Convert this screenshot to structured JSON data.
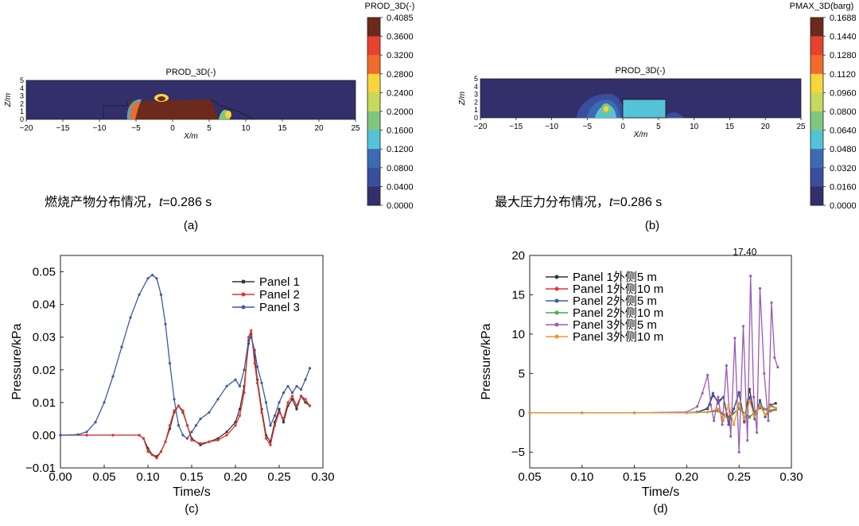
{
  "panel_a": {
    "title": "PROD_3D(-)",
    "colorbar_title": "PROD_3D(-)",
    "colorbar_ticks": [
      "0.4085",
      "0.3600",
      "0.3200",
      "0.2800",
      "0.2400",
      "0.2000",
      "0.1600",
      "0.1200",
      "0.0800",
      "0.0400",
      "0.0000"
    ],
    "colorbar_colors": [
      "#6b2a1c",
      "#e8412e",
      "#f06a2a",
      "#f6d63a",
      "#c6d95a",
      "#7fc77f",
      "#55c3d7",
      "#3c6bb5",
      "#3a4e9e",
      "#332f6b"
    ],
    "caption_cjk": "燃烧产物分布情况，",
    "caption_t": "t",
    "caption_eq": "=0.286 s",
    "label": "(a)",
    "xlabel": "X/m",
    "ylabel": "Z/m",
    "xticks": [
      "−20",
      "−15",
      "−10",
      "−5",
      "0",
      "5",
      "10",
      "15",
      "20",
      "25"
    ],
    "yticks": [
      "0",
      "1",
      "2",
      "3",
      "4",
      "5"
    ]
  },
  "panel_b": {
    "title": "PROD_3D(-)",
    "colorbar_title": "PMAX_3D(barg)",
    "colorbar_ticks": [
      "0.1688",
      "0.1440",
      "0.1280",
      "0.1120",
      "0.0960",
      "0.0800",
      "0.0640",
      "0.0480",
      "0.0320",
      "0.0160",
      "0.0000"
    ],
    "colorbar_colors": [
      "#6b2a1c",
      "#e8412e",
      "#f06a2a",
      "#f6d63a",
      "#c6d95a",
      "#7fc77f",
      "#55c3d7",
      "#3c6bb5",
      "#3a4e9e",
      "#332f6b"
    ],
    "caption_cjk": "最大压力分布情况，",
    "caption_t": "t",
    "caption_eq": "=0.286 s",
    "label": "(b)",
    "xlabel": "X/m",
    "ylabel": "Z/m",
    "xticks": [
      "−20",
      "−15",
      "−10",
      "−5",
      "0",
      "5",
      "10",
      "15",
      "20",
      "25"
    ],
    "yticks": [
      "0",
      "1",
      "2",
      "3",
      "4",
      "5"
    ]
  },
  "chart_data": [
    {
      "type": "line",
      "id": "c",
      "label": "(c)",
      "xlabel": "Time/s",
      "ylabel": "Pressure/kPa",
      "xlim": [
        0,
        0.3
      ],
      "ylim": [
        -0.01,
        0.055
      ],
      "xticks": [
        "0.00",
        "0.05",
        "0.10",
        "0.15",
        "0.20",
        "0.25",
        "0.30"
      ],
      "yticks": [
        "−0.01",
        "0.00",
        "0.01",
        "0.02",
        "0.03",
        "0.04",
        "0.05"
      ],
      "series": [
        {
          "name": "Panel 1",
          "color": "#333333",
          "x": [
            0,
            0.03,
            0.06,
            0.09,
            0.095,
            0.1,
            0.105,
            0.11,
            0.115,
            0.12,
            0.125,
            0.13,
            0.135,
            0.14,
            0.145,
            0.15,
            0.16,
            0.17,
            0.18,
            0.19,
            0.2,
            0.205,
            0.21,
            0.215,
            0.218,
            0.222,
            0.225,
            0.23,
            0.235,
            0.24,
            0.245,
            0.25,
            0.255,
            0.26,
            0.265,
            0.27,
            0.275,
            0.28,
            0.285
          ],
          "y": [
            0,
            0,
            0,
            0,
            -0.001,
            -0.004,
            -0.006,
            -0.0065,
            -0.005,
            -0.002,
            0.002,
            0.007,
            0.009,
            0.007,
            0.003,
            -0.001,
            -0.003,
            -0.002,
            -0.001,
            0.001,
            0.004,
            0.008,
            0.015,
            0.028,
            0.031,
            0.024,
            0.017,
            0.008,
            0.0,
            -0.002,
            0.004,
            0.008,
            0.004,
            0.009,
            0.011,
            0.008,
            0.012,
            0.01,
            0.009
          ]
        },
        {
          "name": "Panel 2",
          "color": "#e0352f",
          "x": [
            0,
            0.03,
            0.06,
            0.09,
            0.095,
            0.1,
            0.105,
            0.11,
            0.115,
            0.12,
            0.125,
            0.13,
            0.135,
            0.14,
            0.145,
            0.15,
            0.16,
            0.17,
            0.18,
            0.19,
            0.2,
            0.205,
            0.21,
            0.215,
            0.218,
            0.222,
            0.225,
            0.23,
            0.235,
            0.24,
            0.245,
            0.25,
            0.255,
            0.26,
            0.265,
            0.27,
            0.275,
            0.28,
            0.285
          ],
          "y": [
            0,
            0,
            0,
            0,
            -0.001,
            -0.005,
            -0.006,
            -0.007,
            -0.005,
            -0.002,
            0.003,
            0.0075,
            0.009,
            0.0075,
            0.003,
            -0.0015,
            -0.0025,
            -0.002,
            -0.0015,
            0.0,
            0.003,
            0.006,
            0.013,
            0.03,
            0.032,
            0.022,
            0.016,
            0.007,
            -0.001,
            -0.003,
            0.003,
            0.007,
            0.005,
            0.01,
            0.012,
            0.009,
            0.012,
            0.011,
            0.009
          ]
        },
        {
          "name": "Panel 3",
          "color": "#3d5a9e",
          "x": [
            0,
            0.02,
            0.03,
            0.04,
            0.05,
            0.06,
            0.07,
            0.08,
            0.09,
            0.1,
            0.105,
            0.11,
            0.115,
            0.12,
            0.125,
            0.13,
            0.135,
            0.14,
            0.145,
            0.15,
            0.155,
            0.16,
            0.17,
            0.18,
            0.19,
            0.2,
            0.205,
            0.21,
            0.215,
            0.218,
            0.222,
            0.225,
            0.23,
            0.235,
            0.24,
            0.245,
            0.25,
            0.255,
            0.26,
            0.265,
            0.27,
            0.275,
            0.28,
            0.285
          ],
          "y": [
            0,
            0.0002,
            0.001,
            0.004,
            0.01,
            0.018,
            0.027,
            0.036,
            0.043,
            0.048,
            0.049,
            0.048,
            0.043,
            0.034,
            0.022,
            0.011,
            0.003,
            0.0,
            -0.001,
            0.001,
            0.003,
            0.005,
            0.007,
            0.011,
            0.015,
            0.017,
            0.015,
            0.02,
            0.029,
            0.03,
            0.026,
            0.021,
            0.016,
            0.01,
            0.003,
            0.006,
            0.01,
            0.013,
            0.015,
            0.013,
            0.015,
            0.014,
            0.017,
            0.0205
          ]
        }
      ]
    },
    {
      "type": "line",
      "id": "d",
      "label": "(d)",
      "xlabel": "Time/s",
      "ylabel": "Pressure/kPa",
      "xlim": [
        0.05,
        0.3
      ],
      "ylim": [
        -7,
        20
      ],
      "xticks": [
        "0.05",
        "0.10",
        "0.15",
        "0.20",
        "0.25",
        "0.30"
      ],
      "yticks": [
        "−5",
        "0",
        "5",
        "10",
        "15",
        "20"
      ],
      "annotation": "17.40",
      "annotation_x": 0.26,
      "annotation_y": 17.4,
      "series": [
        {
          "name": "Panel 1外侧5 m",
          "color": "#333333",
          "x": [
            0.05,
            0.1,
            0.15,
            0.2,
            0.21,
            0.22,
            0.225,
            0.23,
            0.235,
            0.24,
            0.245,
            0.25,
            0.255,
            0.26,
            0.265,
            0.27,
            0.275,
            0.28,
            0.285
          ],
          "y": [
            0,
            0,
            0,
            0,
            0.1,
            0.5,
            2.2,
            1.5,
            2.0,
            -1.0,
            0.5,
            2.6,
            -1.0,
            3.0,
            -0.5,
            1.5,
            -0.5,
            1.0,
            1.2
          ]
        },
        {
          "name": "Panel 1外侧10 m",
          "color": "#e0352f",
          "x": [
            0.05,
            0.1,
            0.15,
            0.2,
            0.22,
            0.23,
            0.24,
            0.25,
            0.26,
            0.27,
            0.28,
            0.285
          ],
          "y": [
            0,
            0,
            0,
            0,
            0.1,
            0.3,
            -0.5,
            0.5,
            -0.5,
            0.6,
            0.2,
            0.4
          ]
        },
        {
          "name": "Panel 2外侧5 m",
          "color": "#3d5a9e",
          "x": [
            0.05,
            0.1,
            0.15,
            0.2,
            0.21,
            0.22,
            0.225,
            0.23,
            0.235,
            0.24,
            0.245,
            0.25,
            0.255,
            0.26,
            0.265,
            0.27,
            0.275,
            0.28,
            0.285
          ],
          "y": [
            0,
            0,
            0,
            0,
            0.1,
            0.6,
            2.5,
            1.2,
            2.0,
            -1.5,
            0.5,
            2.5,
            -1.2,
            2.0,
            -0.8,
            1.6,
            -0.4,
            1.0,
            0.6
          ]
        },
        {
          "name": "Panel 2外侧10 m",
          "color": "#4aa84a",
          "x": [
            0.05,
            0.1,
            0.15,
            0.2,
            0.22,
            0.23,
            0.24,
            0.25,
            0.26,
            0.27,
            0.28,
            0.285
          ],
          "y": [
            0,
            0,
            0,
            0,
            0.1,
            0.2,
            -0.8,
            0.6,
            -0.6,
            0.8,
            0.3,
            0.5
          ]
        },
        {
          "name": "Panel 3外侧5 m",
          "color": "#9b59b6",
          "x": [
            0.05,
            0.1,
            0.15,
            0.2,
            0.21,
            0.215,
            0.22,
            0.223,
            0.226,
            0.23,
            0.234,
            0.238,
            0.242,
            0.246,
            0.25,
            0.254,
            0.258,
            0.261,
            0.264,
            0.267,
            0.27,
            0.274,
            0.278,
            0.281,
            0.284,
            0.287
          ],
          "y": [
            0,
            0,
            0,
            0.1,
            0.8,
            2.5,
            4.8,
            1.0,
            -1.0,
            2.0,
            -1.5,
            6.0,
            -3.0,
            9.5,
            -5.0,
            11.0,
            -3.5,
            17.4,
            2.0,
            -2.5,
            15.8,
            5.0,
            -1.0,
            14.0,
            7.0,
            5.8
          ]
        },
        {
          "name": "Panel 3外侧10 m",
          "color": "#e89a2c",
          "x": [
            0.05,
            0.1,
            0.15,
            0.2,
            0.22,
            0.23,
            0.235,
            0.24,
            0.245,
            0.25,
            0.255,
            0.26,
            0.265,
            0.27,
            0.275,
            0.28,
            0.285
          ],
          "y": [
            0,
            0,
            0,
            0,
            0.1,
            0.5,
            -1.0,
            1.0,
            -1.5,
            1.2,
            -0.8,
            1.5,
            -0.5,
            1.0,
            -0.3,
            0.8,
            0.6
          ]
        }
      ]
    }
  ]
}
